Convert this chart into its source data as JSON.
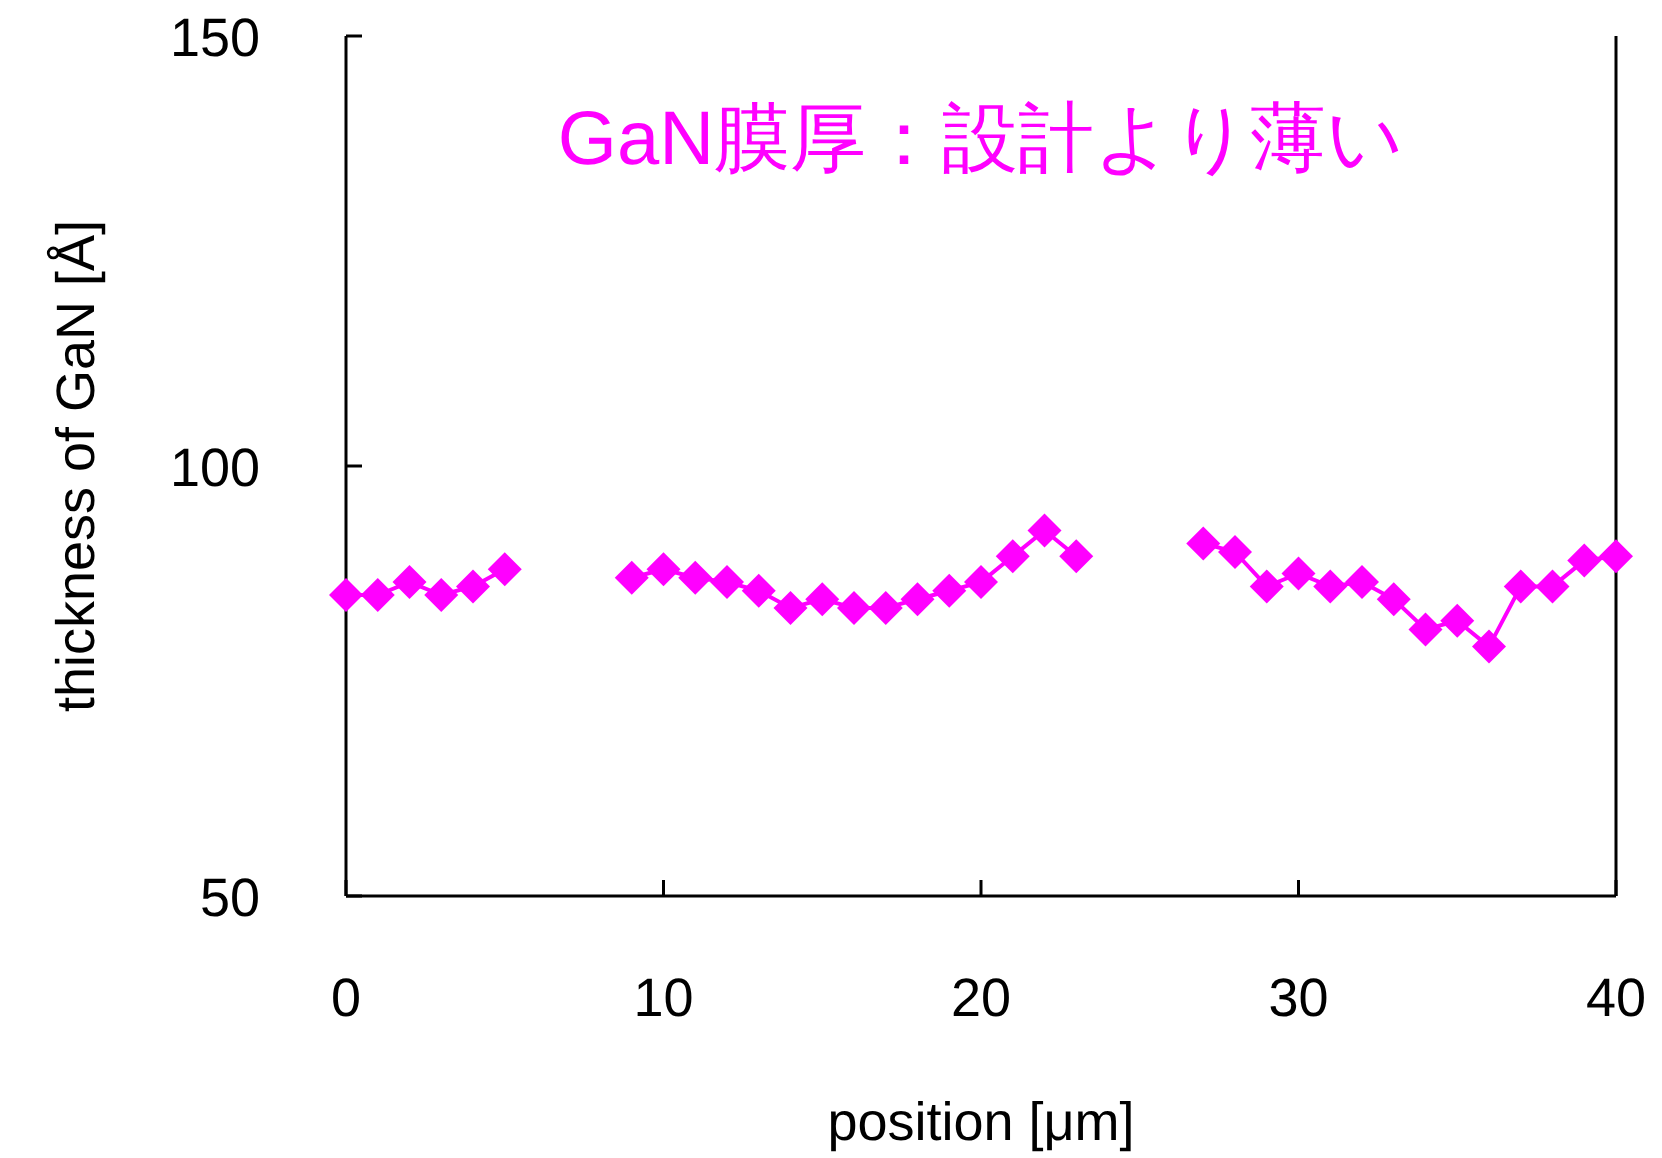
{
  "chart_data": {
    "type": "line",
    "title": "GaN膜厚：設計より薄い",
    "xlabel": "position [μm]",
    "ylabel": "thickness of GaN [Å]",
    "x": [
      0,
      1,
      2,
      3,
      4,
      5,
      6,
      7,
      8,
      9,
      10,
      11,
      12,
      13,
      14,
      15,
      16,
      17,
      18,
      19,
      20,
      21,
      22,
      23,
      24,
      25,
      26,
      27,
      28,
      29,
      30,
      31,
      32,
      33,
      34,
      35,
      36,
      37,
      38,
      39,
      40
    ],
    "series": [
      {
        "color": "#ff00ff",
        "values": [
          85,
          85,
          86.5,
          85,
          86,
          88,
          null,
          null,
          null,
          87,
          88,
          87,
          86.5,
          85.5,
          83.5,
          84.5,
          83.5,
          83.5,
          84.5,
          85.5,
          86.5,
          89.5,
          92.5,
          89.5,
          null,
          null,
          null,
          91,
          90,
          86,
          87.5,
          86,
          86.5,
          84.5,
          81,
          82,
          79,
          86,
          86,
          89,
          89.5
        ]
      }
    ],
    "xlim": [
      0,
      40
    ],
    "ylim": [
      50,
      150
    ],
    "xticks": [
      0,
      10,
      20,
      30,
      40
    ],
    "yticks": [
      50,
      100,
      150
    ],
    "marker": "diamond",
    "line_style": "solid",
    "grid": false
  }
}
